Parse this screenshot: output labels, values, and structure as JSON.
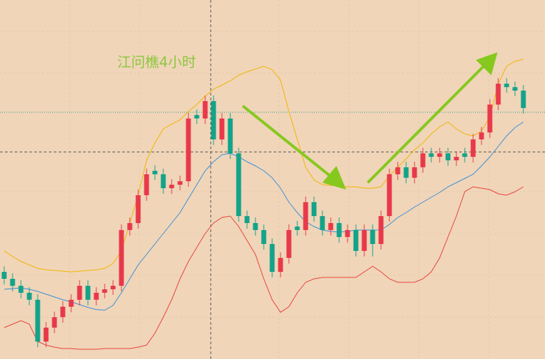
{
  "chart_data": {
    "type": "candlestick",
    "title": "江问樵4小时",
    "ylim": [
      0,
      515
    ],
    "up_color": "#e8394a",
    "down_color": "#13a38a",
    "open": [
      125,
      115,
      105,
      95,
      85,
      25,
      45,
      60,
      75,
      85,
      105,
      85,
      95,
      100,
      105,
      185,
      195,
      235,
      270,
      265,
      245,
      250,
      255,
      350,
      345,
      370,
      315,
      345,
      295,
      205,
      195,
      185,
      165,
      125,
      145,
      190,
      185,
      225,
      205,
      185,
      195,
      175,
      185,
      155,
      185,
      165,
      205,
      265,
      275,
      260,
      275,
      295,
      290,
      295,
      285,
      295,
      290,
      315,
      325,
      365,
      395,
      390,
      385
    ],
    "high": [
      133,
      123,
      113,
      103,
      93,
      53,
      68,
      83,
      93,
      113,
      113,
      103,
      108,
      113,
      193,
      203,
      243,
      273,
      278,
      273,
      258,
      263,
      353,
      358,
      378,
      378,
      353,
      353,
      303,
      213,
      203,
      193,
      173,
      153,
      193,
      198,
      233,
      233,
      213,
      203,
      203,
      193,
      193,
      193,
      193,
      213,
      273,
      283,
      283,
      283,
      303,
      303,
      303,
      303,
      298,
      303,
      323,
      333,
      373,
      403,
      403,
      398,
      393
    ],
    "low": [
      107,
      97,
      87,
      77,
      17,
      17,
      37,
      52,
      67,
      77,
      77,
      77,
      87,
      92,
      97,
      177,
      187,
      227,
      257,
      237,
      237,
      242,
      247,
      337,
      337,
      307,
      307,
      287,
      197,
      187,
      177,
      157,
      117,
      117,
      137,
      177,
      177,
      197,
      177,
      177,
      167,
      167,
      147,
      147,
      147,
      157,
      197,
      257,
      252,
      252,
      267,
      282,
      282,
      277,
      277,
      282,
      282,
      307,
      317,
      357,
      382,
      377,
      352
    ],
    "close": [
      115,
      105,
      95,
      85,
      25,
      45,
      60,
      75,
      85,
      105,
      85,
      95,
      100,
      105,
      185,
      195,
      235,
      265,
      265,
      245,
      250,
      255,
      345,
      345,
      370,
      315,
      345,
      295,
      205,
      195,
      185,
      165,
      125,
      145,
      185,
      185,
      225,
      205,
      185,
      195,
      175,
      185,
      155,
      185,
      165,
      205,
      265,
      275,
      260,
      275,
      295,
      290,
      295,
      285,
      290,
      290,
      315,
      325,
      365,
      395,
      390,
      385,
      360
    ],
    "bands": [
      {
        "color": "#f2b400",
        "values": [
          155,
          147,
          140,
          135,
          130,
          128,
          127,
          126,
          125,
          126,
          127,
          128,
          130,
          137,
          155,
          195,
          235,
          285,
          310,
          330,
          337,
          343,
          355,
          365,
          377,
          387,
          393,
          399,
          407,
          412,
          416,
          420,
          415,
          400,
          355,
          315,
          275,
          257,
          250,
          249,
          248,
          247,
          247,
          245,
          245,
          247,
          263,
          275,
          287,
          300,
          310,
          323,
          333,
          340,
          330,
          323,
          320,
          327,
          347,
          395,
          420,
          427,
          430
        ]
      },
      {
        "color": "#3a8fd9",
        "values": [
          100,
          101,
          102,
          100,
          97,
          93,
          89,
          85,
          82,
          78,
          74,
          71,
          70,
          77,
          95,
          115,
          135,
          150,
          165,
          180,
          195,
          210,
          230,
          250,
          270,
          283,
          293,
          295,
          290,
          283,
          277,
          270,
          260,
          245,
          225,
          210,
          197,
          190,
          185,
          183,
          182,
          183,
          185,
          185,
          185,
          185,
          193,
          203,
          210,
          218,
          225,
          232,
          239,
          247,
          253,
          259,
          265,
          277,
          290,
          305,
          320,
          332,
          340
        ]
      },
      {
        "color": "#e8423c",
        "values": [
          45,
          50,
          55,
          50,
          25,
          20,
          17,
          15,
          15,
          14,
          14,
          14,
          15,
          15,
          15,
          15,
          17,
          20,
          37,
          60,
          85,
          115,
          140,
          160,
          180,
          195,
          203,
          205,
          190,
          170,
          150,
          115,
          85,
          67,
          75,
          95,
          110,
          115,
          117,
          117,
          117,
          117,
          117,
          125,
          133,
          125,
          115,
          110,
          110,
          110,
          115,
          125,
          145,
          175,
          205,
          240,
          247,
          245,
          243,
          237,
          235,
          240,
          247
        ]
      }
    ]
  }
}
